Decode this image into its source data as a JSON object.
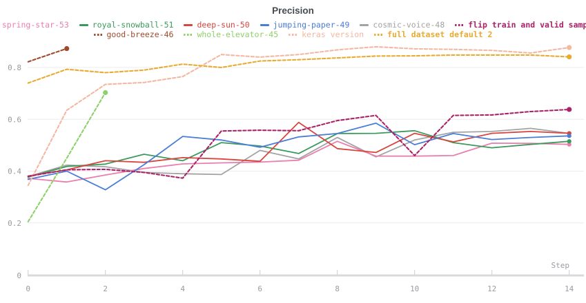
{
  "title": "Precision",
  "axes": {
    "x_label": "Step",
    "x_ticks": [
      0,
      2,
      4,
      6,
      8,
      10,
      12,
      14
    ],
    "y_ticks": [
      0,
      0.2,
      0.4,
      0.6,
      0.8
    ],
    "x_range": [
      0,
      14
    ],
    "grid_color": "#ececee",
    "axis_line_color": "#d9d9de",
    "tick_label_color": "#9a9aa2"
  },
  "legend": {
    "rows": [
      [
        {
          "label": "spring-star-53",
          "color": "#ea7fae",
          "style": "solid",
          "bold": false
        },
        {
          "label": "royal-snowball-51",
          "color": "#3a9a5c",
          "style": "solid",
          "bold": false
        },
        {
          "label": "deep-sun-50",
          "color": "#d6453e",
          "style": "solid",
          "bold": false
        },
        {
          "label": "jumping-paper-49",
          "color": "#4a7dd6",
          "style": "solid",
          "bold": false
        },
        {
          "label": "cosmic-voice-48",
          "color": "#a3a3a3",
          "style": "solid",
          "bold": false
        },
        {
          "label": "flip train and valid sample",
          "color": "#ab2268",
          "style": "dashed",
          "bold": true
        }
      ],
      [
        {
          "label": "good-breeze-46",
          "color": "#a04a2c",
          "style": "dashed",
          "bold": false
        },
        {
          "label": "whole-elevator-45",
          "color": "#8ed06c",
          "style": "dashed",
          "bold": false
        },
        {
          "label": "keras version",
          "color": "#f4b8a2",
          "style": "dashed",
          "bold": false
        },
        {
          "label": "full dataset default 2",
          "color": "#e8ab30",
          "style": "dashed",
          "bold": true
        }
      ]
    ]
  },
  "chart_data": {
    "type": "line",
    "title": "Precision",
    "xlabel": "Step",
    "ylabel": "",
    "x_ticks": [
      0,
      2,
      4,
      6,
      8,
      10,
      12,
      14
    ],
    "y_ticks": [
      0,
      0.2,
      0.4,
      0.6,
      0.8
    ],
    "xlim": [
      0,
      14
    ],
    "ylim": [
      0,
      0.93
    ],
    "grid": "horizontal",
    "legend_position": "top",
    "series": [
      {
        "name": "cosmic-voice-48",
        "color": "#a3a3a3",
        "style": "solid",
        "start_step": 0,
        "values": [
          0.379,
          0.423,
          0.417,
          0.395,
          0.39,
          0.387,
          0.48,
          0.447,
          0.53,
          0.455,
          0.52,
          0.55,
          0.553,
          0.565,
          0.546
        ]
      },
      {
        "name": "spring-star-53",
        "color": "#ea7fae",
        "style": "solid",
        "start_step": 0,
        "values": [
          0.372,
          0.358,
          0.385,
          0.41,
          0.428,
          0.432,
          0.435,
          0.442,
          0.515,
          0.458,
          0.458,
          0.46,
          0.508,
          0.507,
          0.503
        ]
      },
      {
        "name": "royal-snowball-51",
        "color": "#3a9a5c",
        "style": "solid",
        "start_step": 0,
        "values": [
          0.377,
          0.418,
          0.427,
          0.465,
          0.44,
          0.51,
          0.497,
          0.468,
          0.545,
          0.546,
          0.556,
          0.51,
          0.49,
          0.503,
          0.515
        ]
      },
      {
        "name": "deep-sun-50",
        "color": "#d6453e",
        "style": "solid",
        "start_step": 0,
        "values": [
          0.381,
          0.405,
          0.44,
          0.434,
          0.452,
          0.447,
          0.438,
          0.588,
          0.487,
          0.472,
          0.546,
          0.513,
          0.546,
          0.553,
          0.546
        ]
      },
      {
        "name": "jumping-paper-49",
        "color": "#4a7dd6",
        "style": "solid",
        "start_step": 0,
        "values": [
          0.368,
          0.4,
          0.328,
          0.425,
          0.534,
          0.52,
          0.492,
          0.532,
          0.545,
          0.585,
          0.502,
          0.545,
          0.522,
          0.53,
          0.536
        ]
      },
      {
        "name": "good-breeze-46",
        "color": "#a04a2c",
        "style": "dashed",
        "start_step": 0,
        "values": [
          0.822,
          0.873
        ]
      },
      {
        "name": "whole-elevator-45",
        "color": "#8ed06c",
        "style": "dashed",
        "start_step": 0,
        "values": [
          0.205,
          0.45,
          0.703
        ]
      },
      {
        "name": "keras version",
        "color": "#f4b8a2",
        "style": "dashed",
        "start_step": 0,
        "values": [
          0.345,
          0.635,
          0.735,
          0.742,
          0.765,
          0.85,
          0.84,
          0.85,
          0.868,
          0.88,
          0.872,
          0.87,
          0.866,
          0.856,
          0.877
        ]
      },
      {
        "name": "full dataset default 2",
        "color": "#e8ab30",
        "style": "dashed",
        "start_step": 0,
        "values": [
          0.74,
          0.793,
          0.78,
          0.79,
          0.813,
          0.8,
          0.825,
          0.83,
          0.837,
          0.844,
          0.845,
          0.848,
          0.848,
          0.848,
          0.841
        ]
      },
      {
        "name": "flip train and valid sample",
        "color": "#ab2268",
        "style": "dashed",
        "start_step": 0,
        "values": [
          0.38,
          0.405,
          0.407,
          0.395,
          0.373,
          0.555,
          0.558,
          0.556,
          0.595,
          0.615,
          0.46,
          0.615,
          0.617,
          0.63,
          0.638
        ]
      }
    ]
  }
}
